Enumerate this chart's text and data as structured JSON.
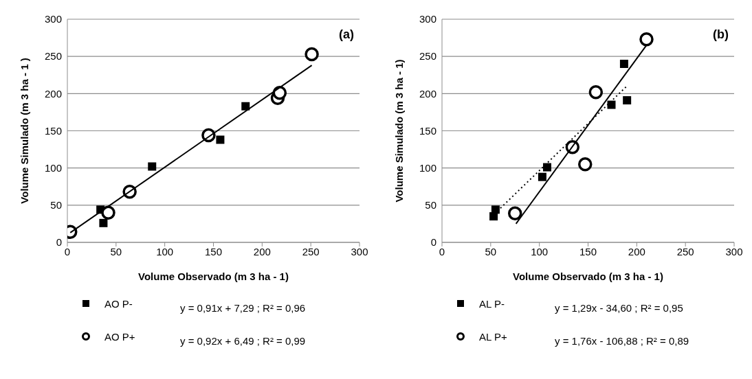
{
  "chart_data": [
    {
      "type": "scatter",
      "xlabel": "Volume Observado (m 3 ha - 1)",
      "ylabel": "Volume Simulado (m 3 ha - 1 )",
      "xlim": [
        0,
        300
      ],
      "ylim": [
        0,
        300
      ],
      "xticks": [
        0,
        50,
        100,
        150,
        200,
        250,
        300
      ],
      "yticks": [
        0,
        50,
        100,
        150,
        200,
        250,
        300
      ],
      "grid": "y",
      "legend": "bottom",
      "annotations": [
        "(a)",
        "y = 0,91x + 7,29 ;   R² = 0,96",
        "y = 0,92x + 6,49 ;   R² = 0,99"
      ],
      "series": [
        {
          "name": "AO P-",
          "color": "#000000",
          "marker": "square",
          "x": [
            34,
            37,
            87,
            157,
            183
          ],
          "values": [
            44,
            26,
            102,
            138,
            183
          ]
        },
        {
          "name": "AO P+",
          "color": "#000000",
          "marker": "circle",
          "x": [
            3,
            42,
            64,
            145,
            216,
            218,
            251
          ],
          "values": [
            14,
            40,
            68,
            144,
            194,
            201,
            253
          ]
        },
        {
          "type": "line",
          "color": "#000000",
          "marker": "none",
          "line_style": "solid",
          "x": [
            3,
            251
          ],
          "values": [
            13,
            238
          ]
        }
      ]
    },
    {
      "type": "scatter",
      "xlabel": "Volume Observado (m 3 ha - 1)",
      "ylabel": "Volume Simulado (m 3 ha - 1)",
      "xlim": [
        0,
        300
      ],
      "ylim": [
        0,
        300
      ],
      "xticks": [
        0,
        50,
        100,
        150,
        200,
        250,
        300
      ],
      "yticks": [
        0,
        50,
        100,
        150,
        200,
        250,
        300
      ],
      "grid": "y",
      "legend": "bottom",
      "annotations": [
        "(b)",
        "y = 1,29x - 34,60 ;   R² = 0,95",
        "y = 1,76x - 106,88 ;  R² = 0,89"
      ],
      "series": [
        {
          "name": "AL P-",
          "color": "#000000",
          "marker": "square",
          "x": [
            53,
            55,
            103,
            108,
            174,
            187,
            190
          ],
          "values": [
            35,
            44,
            88,
            101,
            185,
            240,
            191
          ]
        },
        {
          "name": "AL P+",
          "color": "#000000",
          "marker": "circle",
          "x": [
            75,
            134,
            147,
            158,
            210
          ],
          "values": [
            39,
            128,
            105,
            202,
            273
          ]
        },
        {
          "type": "line",
          "color": "#000000",
          "marker": "none",
          "line_style": "dotted",
          "x": [
            60,
            189
          ],
          "values": [
            46,
            209
          ]
        },
        {
          "type": "line",
          "color": "#000000",
          "marker": "none",
          "line_style": "solid",
          "x": [
            76,
            210
          ],
          "values": [
            25,
            265
          ]
        }
      ]
    }
  ]
}
